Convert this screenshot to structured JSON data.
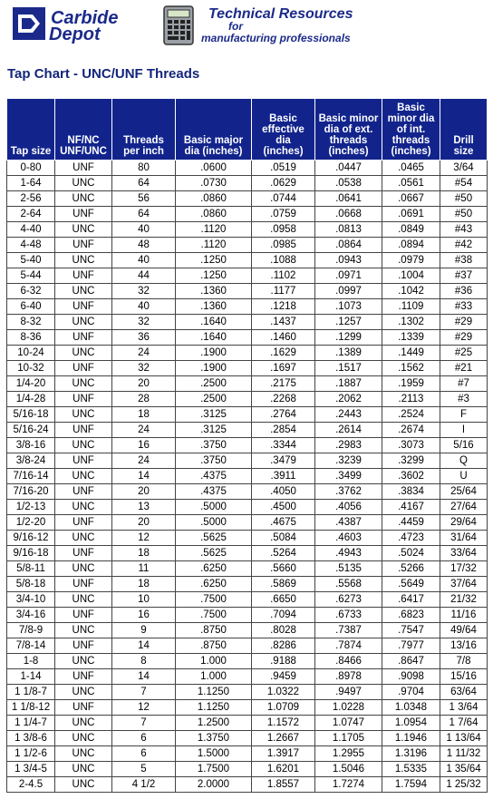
{
  "header": {
    "logo_line1": "Carbide",
    "logo_line2": "Depot",
    "title": "Technical Resources",
    "subtitle_line1": "for",
    "subtitle_line2": "manufacturing professionals"
  },
  "page_title": "Tap Chart - UNC/UNF Threads",
  "colors": {
    "header_bg": "#12248c",
    "brand_blue": "#1b2a8a"
  },
  "icons": {
    "logo": "carbide-depot-logo",
    "calculator": "calculator-icon"
  },
  "table": {
    "columns": [
      [
        "Tap size"
      ],
      [
        "NF/NC",
        "UNF/UNC"
      ],
      [
        "Threads",
        "per inch"
      ],
      [
        "Basic major",
        "dia (inches)"
      ],
      [
        "Basic",
        "effective",
        "dia",
        "(inches)"
      ],
      [
        "Basic minor",
        "dia of ext.",
        "threads",
        "(inches)"
      ],
      [
        "Basic",
        "minor dia",
        "of int.",
        "threads",
        "(inches)"
      ],
      [
        "Drill",
        "size"
      ]
    ],
    "rows": [
      [
        "0-80",
        "UNF",
        "80",
        ".0600",
        ".0519",
        ".0447",
        ".0465",
        "3/64"
      ],
      [
        "1-64",
        "UNC",
        "64",
        ".0730",
        ".0629",
        ".0538",
        ".0561",
        "#54"
      ],
      [
        "2-56",
        "UNC",
        "56",
        ".0860",
        ".0744",
        ".0641",
        ".0667",
        "#50"
      ],
      [
        "2-64",
        "UNF",
        "64",
        ".0860",
        ".0759",
        ".0668",
        ".0691",
        "#50"
      ],
      [
        "4-40",
        "UNC",
        "40",
        ".1120",
        ".0958",
        ".0813",
        ".0849",
        "#43"
      ],
      [
        "4-48",
        "UNF",
        "48",
        ".1120",
        ".0985",
        ".0864",
        ".0894",
        "#42"
      ],
      [
        "5-40",
        "UNC",
        "40",
        ".1250",
        ".1088",
        ".0943",
        ".0979",
        "#38"
      ],
      [
        "5-44",
        "UNF",
        "44",
        ".1250",
        ".1102",
        ".0971",
        ".1004",
        "#37"
      ],
      [
        "6-32",
        "UNC",
        "32",
        ".1360",
        ".1177",
        ".0997",
        ".1042",
        "#36"
      ],
      [
        "6-40",
        "UNF",
        "40",
        ".1360",
        ".1218",
        ".1073",
        ".1109",
        "#33"
      ],
      [
        "8-32",
        "UNC",
        "32",
        ".1640",
        ".1437",
        ".1257",
        ".1302",
        "#29"
      ],
      [
        "8-36",
        "UNF",
        "36",
        ".1640",
        ".1460",
        ".1299",
        ".1339",
        "#29"
      ],
      [
        "10-24",
        "UNC",
        "24",
        ".1900",
        ".1629",
        ".1389",
        ".1449",
        "#25"
      ],
      [
        "10-32",
        "UNF",
        "32",
        ".1900",
        ".1697",
        ".1517",
        ".1562",
        "#21"
      ],
      [
        "1/4-20",
        "UNC",
        "20",
        ".2500",
        ".2175",
        ".1887",
        ".1959",
        "#7"
      ],
      [
        "1/4-28",
        "UNF",
        "28",
        ".2500",
        ".2268",
        ".2062",
        ".2113",
        "#3"
      ],
      [
        "5/16-18",
        "UNC",
        "18",
        ".3125",
        ".2764",
        ".2443",
        ".2524",
        "F"
      ],
      [
        "5/16-24",
        "UNF",
        "24",
        ".3125",
        ".2854",
        ".2614",
        ".2674",
        "I"
      ],
      [
        "3/8-16",
        "UNC",
        "16",
        ".3750",
        ".3344",
        ".2983",
        ".3073",
        "5/16"
      ],
      [
        "3/8-24",
        "UNF",
        "24",
        ".3750",
        ".3479",
        ".3239",
        ".3299",
        "Q"
      ],
      [
        "7/16-14",
        "UNC",
        "14",
        ".4375",
        ".3911",
        ".3499",
        ".3602",
        "U"
      ],
      [
        "7/16-20",
        "UNF",
        "20",
        ".4375",
        ".4050",
        ".3762",
        ".3834",
        "25/64"
      ],
      [
        "1/2-13",
        "UNC",
        "13",
        ".5000",
        ".4500",
        ".4056",
        ".4167",
        "27/64"
      ],
      [
        "1/2-20",
        "UNF",
        "20",
        ".5000",
        ".4675",
        ".4387",
        ".4459",
        "29/64"
      ],
      [
        "9/16-12",
        "UNC",
        "12",
        ".5625",
        ".5084",
        ".4603",
        ".4723",
        "31/64"
      ],
      [
        "9/16-18",
        "UNF",
        "18",
        ".5625",
        ".5264",
        ".4943",
        ".5024",
        "33/64"
      ],
      [
        "5/8-11",
        "UNC",
        "11",
        ".6250",
        ".5660",
        ".5135",
        ".5266",
        "17/32"
      ],
      [
        "5/8-18",
        "UNF",
        "18",
        ".6250",
        ".5869",
        ".5568",
        ".5649",
        "37/64"
      ],
      [
        "3/4-10",
        "UNC",
        "10",
        ".7500",
        ".6650",
        ".6273",
        ".6417",
        "21/32"
      ],
      [
        "3/4-16",
        "UNF",
        "16",
        ".7500",
        ".7094",
        ".6733",
        ".6823",
        "11/16"
      ],
      [
        "7/8-9",
        "UNC",
        "9",
        ".8750",
        ".8028",
        ".7387",
        ".7547",
        "49/64"
      ],
      [
        "7/8-14",
        "UNF",
        "14",
        ".8750",
        ".8286",
        ".7874",
        ".7977",
        "13/16"
      ],
      [
        "1-8",
        "UNC",
        "8",
        "1.000",
        ".9188",
        ".8466",
        ".8647",
        "7/8"
      ],
      [
        "1-14",
        "UNF",
        "14",
        "1.000",
        ".9459",
        ".8978",
        ".9098",
        "15/16"
      ],
      [
        "1 1/8-7",
        "UNC",
        "7",
        "1.1250",
        "1.0322",
        ".9497",
        ".9704",
        "63/64"
      ],
      [
        "1 1/8-12",
        "UNF",
        "12",
        "1.1250",
        "1.0709",
        "1.0228",
        "1.0348",
        "1 3/64"
      ],
      [
        "1 1/4-7",
        "UNC",
        "7",
        "1.2500",
        "1.1572",
        "1.0747",
        "1.0954",
        "1 7/64"
      ],
      [
        "1 3/8-6",
        "UNC",
        "6",
        "1.3750",
        "1.2667",
        "1.1705",
        "1.1946",
        "1 13/64"
      ],
      [
        "1 1/2-6",
        "UNC",
        "6",
        "1.5000",
        "1.3917",
        "1.2955",
        "1.3196",
        "1 11/32"
      ],
      [
        "1 3/4-5",
        "UNC",
        "5",
        "1.7500",
        "1.6201",
        "1.5046",
        "1.5335",
        "1 35/64"
      ],
      [
        "2-4.5",
        "UNC",
        "4 1/2",
        "2.0000",
        "1.8557",
        "1.7274",
        "1.7594",
        "1 25/32"
      ]
    ]
  }
}
